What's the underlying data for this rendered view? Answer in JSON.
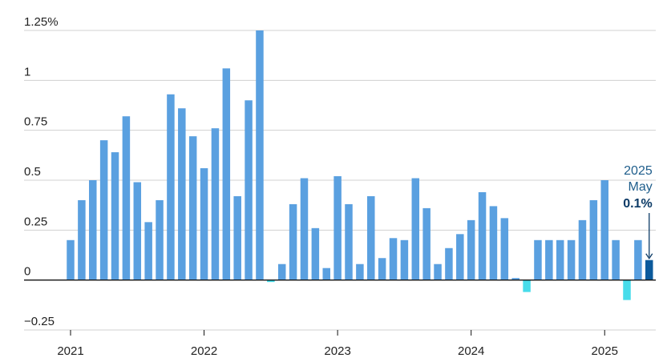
{
  "chart_data": {
    "type": "bar",
    "title": "",
    "xlabel": "",
    "ylabel": "",
    "ylim": [
      -0.25,
      1.25
    ],
    "y_ticks": [
      -0.25,
      0,
      0.25,
      0.5,
      0.75,
      1,
      1.25
    ],
    "y_tick_labels": [
      "−0.25",
      "0",
      "0.25",
      "0.5",
      "0.75",
      "1",
      "1.25%"
    ],
    "x_start": "2021-01",
    "x_tick_labels": [
      "2021",
      "2022",
      "2023",
      "2024",
      "2025"
    ],
    "x_tick_months": [
      "2021-01",
      "2022-01",
      "2023-01",
      "2024-01",
      "2025-01"
    ],
    "grid": true,
    "colors": {
      "positive": "#5aa0e0",
      "negative": "#47dcea",
      "latest": "#0c5a9c",
      "grid": "#d0d0d0",
      "axis": "#111111",
      "annotation": "#1f5e8c"
    },
    "values": [
      0.2,
      0.4,
      0.5,
      0.7,
      0.64,
      0.82,
      0.49,
      0.29,
      0.4,
      0.93,
      0.86,
      0.72,
      0.56,
      0.76,
      1.06,
      0.42,
      0.9,
      1.25,
      -0.01,
      0.08,
      0.38,
      0.51,
      0.26,
      0.06,
      0.52,
      0.38,
      0.08,
      0.42,
      0.11,
      0.21,
      0.2,
      0.51,
      0.36,
      0.08,
      0.16,
      0.23,
      0.3,
      0.44,
      0.37,
      0.31,
      0.01,
      -0.06,
      0.2,
      0.2,
      0.2,
      0.2,
      0.3,
      0.4,
      0.5,
      0.2,
      -0.1,
      0.2,
      0.1
    ],
    "annotation": {
      "year": "2025",
      "month": "May",
      "value": "0.1%"
    }
  }
}
